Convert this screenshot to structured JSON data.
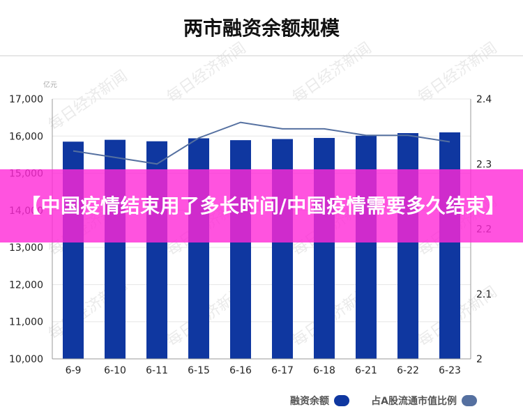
{
  "banner": {
    "headline": "【中国疫情结束用了多长时间/中国疫情需要多久结束】"
  },
  "watermark": {
    "text": "每日经济新闻"
  },
  "colors": {
    "bar": "#0f37a0",
    "line": "#5570a0",
    "banner": "#ff28d7",
    "grid": "#e6e6e6"
  },
  "chart_data": {
    "type": "bar",
    "title": "两市融资余额规模",
    "unit_label": "亿元",
    "categories": [
      "6-9",
      "6-10",
      "6-11",
      "6-15",
      "6-16",
      "6-17",
      "6-18",
      "6-21",
      "6-22",
      "6-23"
    ],
    "left_axis": {
      "ylim": [
        10000,
        17000
      ],
      "ticks": [
        "10,000",
        "11,000",
        "12,000",
        "13,000",
        "14,000",
        "15,000",
        "16,000",
        "17,000"
      ]
    },
    "right_axis": {
      "ylim": [
        2.0,
        2.4
      ],
      "ticks": [
        "2",
        "2.1",
        "2.2",
        "2.3",
        "2.4"
      ]
    },
    "series": [
      {
        "name": "融资余额",
        "type": "bar",
        "axis": "left",
        "values": [
          15850,
          15900,
          15860,
          15940,
          15890,
          15920,
          15950,
          16010,
          16080,
          16100
        ]
      },
      {
        "name": "占A股流通市值比例",
        "type": "line",
        "axis": "right",
        "values": [
          2.32,
          2.31,
          2.3,
          2.34,
          2.364,
          2.354,
          2.354,
          2.344,
          2.344,
          2.334
        ]
      }
    ],
    "grid": true,
    "legend_position": "bottom-right"
  }
}
